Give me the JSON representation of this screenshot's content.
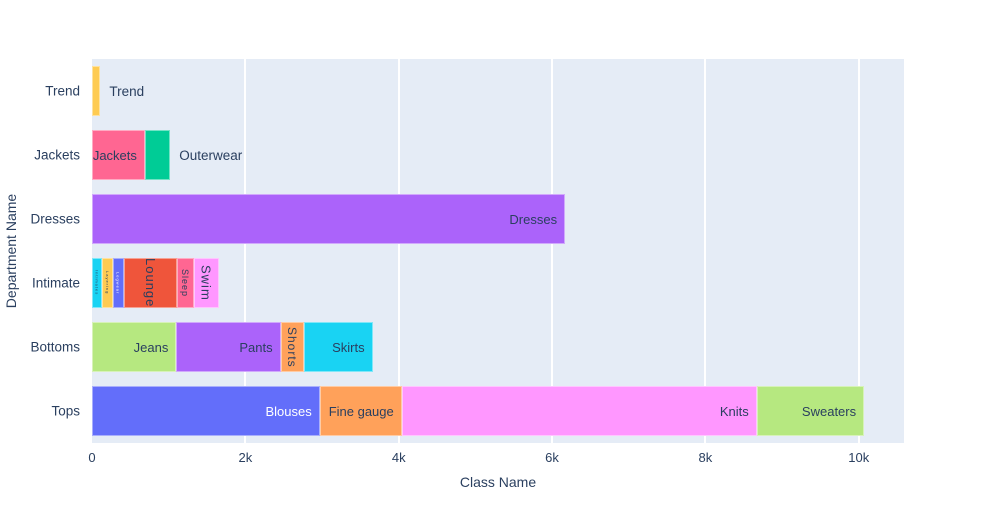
{
  "chart_data": {
    "type": "bar",
    "orientation": "horizontal",
    "stacked": true,
    "title": "",
    "xlabel": "Class Name",
    "ylabel": "Department Name",
    "xlim": [
      0,
      10590
    ],
    "grid": true,
    "legend": false,
    "plot_bg_color": "#E5ECF6",
    "grid_color": "#FFFFFF",
    "text_color": "#2a3f5f",
    "xticks": [
      {
        "value": 0,
        "label": "0"
      },
      {
        "value": 2000,
        "label": "2k"
      },
      {
        "value": 4000,
        "label": "4k"
      },
      {
        "value": 6000,
        "label": "6k"
      },
      {
        "value": 8000,
        "label": "8k"
      },
      {
        "value": 10000,
        "label": "10k"
      }
    ],
    "categories": [
      "Trend",
      "Jackets",
      "Dresses",
      "Intimate",
      "Bottoms",
      "Tops"
    ],
    "rows": [
      {
        "department": "Trend",
        "segments": [
          {
            "class": "Trend",
            "value": 110,
            "color": "#FECB52",
            "label_pos": "outside"
          }
        ]
      },
      {
        "department": "Jackets",
        "segments": [
          {
            "class": "Jackets",
            "value": 690,
            "color": "#FF6692",
            "label_pos": "inside-h"
          },
          {
            "class": "Outerwear",
            "value": 330,
            "color": "#00CC96",
            "label_pos": "outside"
          }
        ]
      },
      {
        "department": "Dresses",
        "segments": [
          {
            "class": "Dresses",
            "value": 6170,
            "color": "#AB63FA",
            "label_pos": "inside-h"
          }
        ]
      },
      {
        "department": "Intimate",
        "segments": [
          {
            "class": "Intimates",
            "value": 130,
            "color": "#19D3F3",
            "label_pos": "tiny-v"
          },
          {
            "class": "Layering",
            "value": 140,
            "color": "#FECB52",
            "label_pos": "tiny-v"
          },
          {
            "class": "Legwear",
            "value": 145,
            "color": "#636EFA",
            "label_pos": "tiny-v"
          },
          {
            "class": "Lounge",
            "value": 690,
            "color": "#EF553B",
            "label_pos": "inside-v"
          },
          {
            "class": "Sleep",
            "value": 220,
            "color": "#FF6692",
            "label_pos": "inside-v"
          },
          {
            "class": "Swim",
            "value": 330,
            "color": "#FF97FF",
            "label_pos": "inside-v"
          }
        ]
      },
      {
        "department": "Bottoms",
        "segments": [
          {
            "class": "Jeans",
            "value": 1100,
            "color": "#B6E880",
            "label_pos": "inside-h"
          },
          {
            "class": "Pants",
            "value": 1360,
            "color": "#AB63FA",
            "label_pos": "inside-h"
          },
          {
            "class": "Shorts",
            "value": 300,
            "color": "#FFA15A",
            "label_pos": "inside-v"
          },
          {
            "class": "Skirts",
            "value": 900,
            "color": "#19D3F3",
            "label_pos": "inside-h"
          }
        ]
      },
      {
        "department": "Tops",
        "segments": [
          {
            "class": "Blouses",
            "value": 2970,
            "color": "#636EFA",
            "label_pos": "inside-h"
          },
          {
            "class": "Fine gauge",
            "value": 1070,
            "color": "#FFA15A",
            "label_pos": "inside-h"
          },
          {
            "class": "Knits",
            "value": 4630,
            "color": "#FF97FF",
            "label_pos": "inside-h"
          },
          {
            "class": "Sweaters",
            "value": 1400,
            "color": "#B6E880",
            "label_pos": "inside-h"
          }
        ]
      }
    ]
  }
}
